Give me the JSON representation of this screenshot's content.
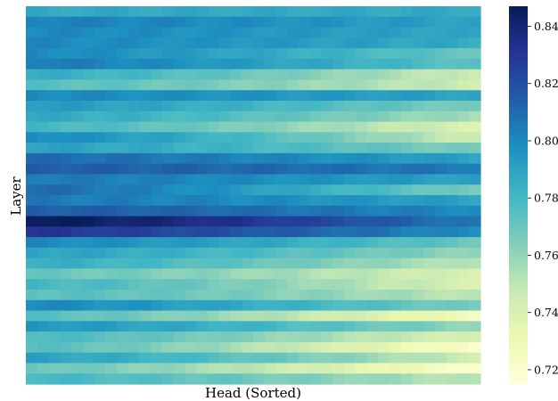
{
  "chart_data": {
    "type": "heatmap",
    "title": "",
    "xlabel": "Head (Sorted)",
    "ylabel": "Layer",
    "colormap": "YlGnBu",
    "colorbar": {
      "min": 0.715,
      "max": 0.847,
      "ticks": [
        0.72,
        0.74,
        0.76,
        0.78,
        0.8,
        0.82,
        0.84
      ],
      "tick_labels": [
        "0.72",
        "0.74",
        "0.76",
        "0.78",
        "0.80",
        "0.82",
        "0.84"
      ]
    },
    "rows": 36,
    "cols": 40,
    "x_ticks": "none",
    "y_ticks": "none",
    "sorted_along": "head",
    "row_profiles": [
      {
        "layer": 1,
        "first": 0.787,
        "last": 0.787
      },
      {
        "layer": 2,
        "first": 0.803,
        "last": 0.79
      },
      {
        "layer": 3,
        "first": 0.8,
        "last": 0.788
      },
      {
        "layer": 4,
        "first": 0.8,
        "last": 0.786
      },
      {
        "layer": 5,
        "first": 0.8,
        "last": 0.77
      },
      {
        "layer": 6,
        "first": 0.805,
        "last": 0.773
      },
      {
        "layer": 7,
        "first": 0.785,
        "last": 0.745
      },
      {
        "layer": 8,
        "first": 0.775,
        "last": 0.745
      },
      {
        "layer": 9,
        "first": 0.8,
        "last": 0.79
      },
      {
        "layer": 10,
        "first": 0.793,
        "last": 0.765
      },
      {
        "layer": 11,
        "first": 0.787,
        "last": 0.755
      },
      {
        "layer": 12,
        "first": 0.78,
        "last": 0.74
      },
      {
        "layer": 13,
        "first": 0.8,
        "last": 0.745
      },
      {
        "layer": 14,
        "first": 0.79,
        "last": 0.765
      },
      {
        "layer": 15,
        "first": 0.81,
        "last": 0.79
      },
      {
        "layer": 16,
        "first": 0.815,
        "last": 0.805
      },
      {
        "layer": 17,
        "first": 0.805,
        "last": 0.79
      },
      {
        "layer": 18,
        "first": 0.81,
        "last": 0.765
      },
      {
        "layer": 19,
        "first": 0.805,
        "last": 0.79
      },
      {
        "layer": 20,
        "first": 0.815,
        "last": 0.8
      },
      {
        "layer": 21,
        "first": 0.847,
        "last": 0.805
      },
      {
        "layer": 22,
        "first": 0.83,
        "last": 0.798
      },
      {
        "layer": 23,
        "first": 0.8,
        "last": 0.77
      },
      {
        "layer": 24,
        "first": 0.79,
        "last": 0.76
      },
      {
        "layer": 25,
        "first": 0.785,
        "last": 0.75
      },
      {
        "layer": 26,
        "first": 0.77,
        "last": 0.74
      },
      {
        "layer": 27,
        "first": 0.78,
        "last": 0.74
      },
      {
        "layer": 28,
        "first": 0.775,
        "last": 0.75
      },
      {
        "layer": 29,
        "first": 0.8,
        "last": 0.765
      },
      {
        "layer": 30,
        "first": 0.775,
        "last": 0.725
      },
      {
        "layer": 31,
        "first": 0.795,
        "last": 0.76
      },
      {
        "layer": 32,
        "first": 0.778,
        "last": 0.74
      },
      {
        "layer": 33,
        "first": 0.775,
        "last": 0.72
      },
      {
        "layer": 34,
        "first": 0.79,
        "last": 0.745
      },
      {
        "layer": 35,
        "first": 0.77,
        "last": 0.72
      },
      {
        "layer": 36,
        "first": 0.78,
        "last": 0.75
      }
    ]
  }
}
